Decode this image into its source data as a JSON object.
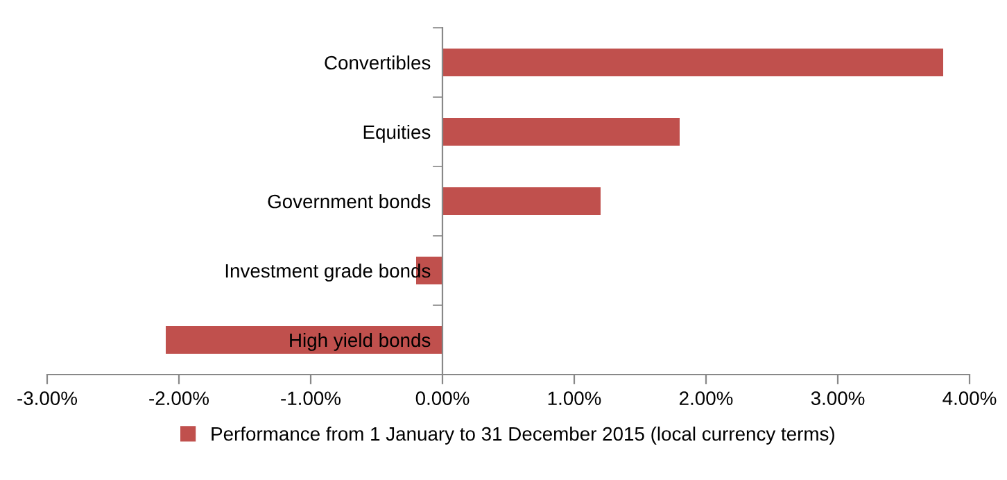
{
  "chart_data": {
    "type": "bar",
    "orientation": "horizontal",
    "categories": [
      "Convertibles",
      "Equities",
      "Government bonds",
      "Investment grade bonds",
      "High yield bonds"
    ],
    "series": [
      {
        "name": "Performance from 1 January to 31 December 2015 (local currency terms)",
        "color": "#c0504d",
        "values": [
          3.8,
          1.8,
          1.2,
          -0.2,
          -2.1
        ]
      }
    ],
    "xlim": [
      -3,
      4
    ],
    "xticks": [
      {
        "value": -3,
        "label": "-3.00%"
      },
      {
        "value": -2,
        "label": "-2.00%"
      },
      {
        "value": -1,
        "label": "-1.00%"
      },
      {
        "value": 0,
        "label": "0.00%"
      },
      {
        "value": 1,
        "label": "1.00%"
      },
      {
        "value": 2,
        "label": "2.00%"
      },
      {
        "value": 3,
        "label": "3.00%"
      },
      {
        "value": 4,
        "label": "4.00%"
      }
    ],
    "grid": false,
    "legend": "bottom"
  }
}
